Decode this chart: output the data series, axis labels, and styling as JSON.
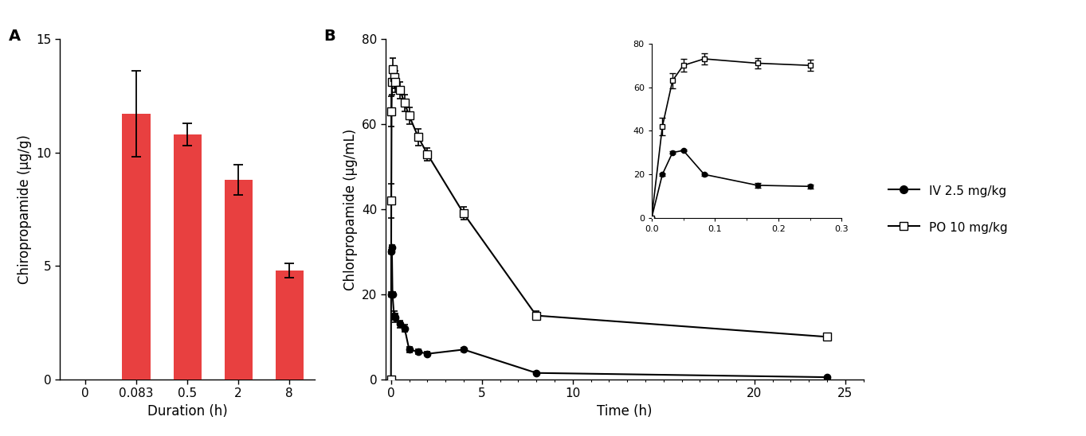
{
  "panel_A": {
    "title": "A",
    "categories": [
      "0",
      "0.083",
      "0.5",
      "2",
      "8"
    ],
    "values": [
      0,
      11.7,
      10.8,
      8.8,
      4.8
    ],
    "errors": [
      0,
      1.9,
      0.5,
      0.65,
      0.3
    ],
    "bar_color": "#e84040",
    "ylabel": "Chiropropamide (μg/g)",
    "xlabel": "Duration (h)",
    "ylim": [
      0,
      15
    ],
    "yticks": [
      0,
      5,
      10,
      15
    ]
  },
  "panel_B": {
    "title": "B",
    "ylabel": "Chlorpropamide (μg/mL)",
    "xlabel": "Time (h)",
    "ylim": [
      0,
      80
    ],
    "yticks": [
      0,
      20,
      40,
      60,
      80
    ],
    "xticks": [
      0,
      5,
      10,
      20,
      25
    ],
    "xticklabels": [
      "0",
      "5",
      "10",
      "20",
      "25"
    ],
    "xlim": [
      -0.3,
      26
    ],
    "iv": {
      "label": "IV 2.5 mg/kg",
      "x": [
        0.017,
        0.033,
        0.05,
        0.083,
        0.167,
        0.25,
        0.5,
        0.75,
        1.0,
        1.5,
        2.0,
        4.0,
        8.0,
        24.0
      ],
      "y": [
        20.0,
        30.0,
        31.0,
        20.0,
        15.0,
        14.5,
        13.0,
        12.0,
        7.0,
        6.5,
        6.0,
        7.0,
        1.5,
        0.5
      ],
      "yerr": [
        0.5,
        0.5,
        0.5,
        0.5,
        1.0,
        1.0,
        0.8,
        0.8,
        0.6,
        0.5,
        0.5,
        0.5,
        0.3,
        0.2
      ]
    },
    "po": {
      "label": "PO 10 mg/kg",
      "x": [
        0.0,
        0.017,
        0.033,
        0.05,
        0.083,
        0.167,
        0.25,
        0.5,
        0.75,
        1.0,
        1.5,
        2.0,
        4.0,
        8.0,
        24.0
      ],
      "y": [
        0.0,
        42.0,
        63.0,
        70.0,
        73.0,
        71.0,
        70.0,
        68.0,
        65.0,
        62.0,
        57.0,
        53.0,
        39.0,
        15.0,
        10.0
      ],
      "yerr": [
        0.0,
        4.0,
        3.5,
        3.0,
        2.5,
        2.5,
        2.5,
        2.0,
        2.0,
        2.0,
        2.0,
        1.5,
        1.5,
        1.0,
        0.8
      ]
    },
    "inset": {
      "xlim": [
        0,
        0.3
      ],
      "ylim": [
        0,
        80
      ],
      "xticks": [
        0.0,
        0.1,
        0.2,
        0.3
      ],
      "xticklabels": [
        "0.0",
        "0.1",
        "0.2",
        "0.3"
      ],
      "yticks": [
        0,
        20,
        40,
        60,
        80
      ],
      "iv_x": [
        0.0,
        0.017,
        0.033,
        0.05,
        0.083,
        0.167,
        0.25
      ],
      "iv_y": [
        0.0,
        20.0,
        30.0,
        31.0,
        20.0,
        15.0,
        14.5
      ],
      "iv_yerr": [
        0.0,
        0.5,
        0.5,
        0.5,
        0.5,
        1.0,
        1.0
      ],
      "po_x": [
        0.0,
        0.017,
        0.033,
        0.05,
        0.083,
        0.167,
        0.25
      ],
      "po_y": [
        0.0,
        42.0,
        63.0,
        70.0,
        73.0,
        71.0,
        70.0
      ],
      "po_yerr": [
        0.0,
        4.0,
        3.5,
        3.0,
        2.5,
        2.5,
        2.5
      ]
    }
  },
  "legend": {
    "iv_label": "IV 2.5 mg/kg",
    "po_label": "PO 10 mg/kg"
  },
  "figsize": [
    13.63,
    5.48
  ],
  "dpi": 100
}
